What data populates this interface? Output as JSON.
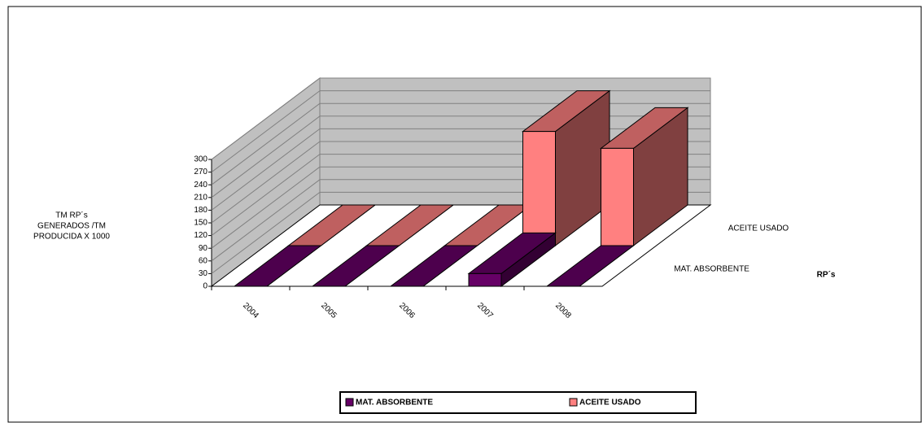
{
  "chart_data": {
    "type": "bar3d",
    "ylabel": [
      "TM RP´s",
      "GENERADOS /TM",
      "PRODUCIDA X 1000"
    ],
    "zlabel": "RP´s",
    "categories": [
      "2004",
      "2005",
      "2006",
      "2007",
      "2008"
    ],
    "series": [
      {
        "name": "MAT. ABSORBENTE",
        "color": "#660066",
        "values": [
          0,
          0,
          0,
          30,
          0
        ]
      },
      {
        "name": "ACEITE USADO",
        "color": "#ff8080",
        "values": [
          0,
          0,
          0,
          270,
          230
        ]
      }
    ],
    "ylim": [
      0,
      300
    ],
    "yticks": [
      0,
      30,
      60,
      90,
      120,
      150,
      180,
      210,
      240,
      270,
      300
    ],
    "grid": true,
    "legend": "bottom"
  }
}
